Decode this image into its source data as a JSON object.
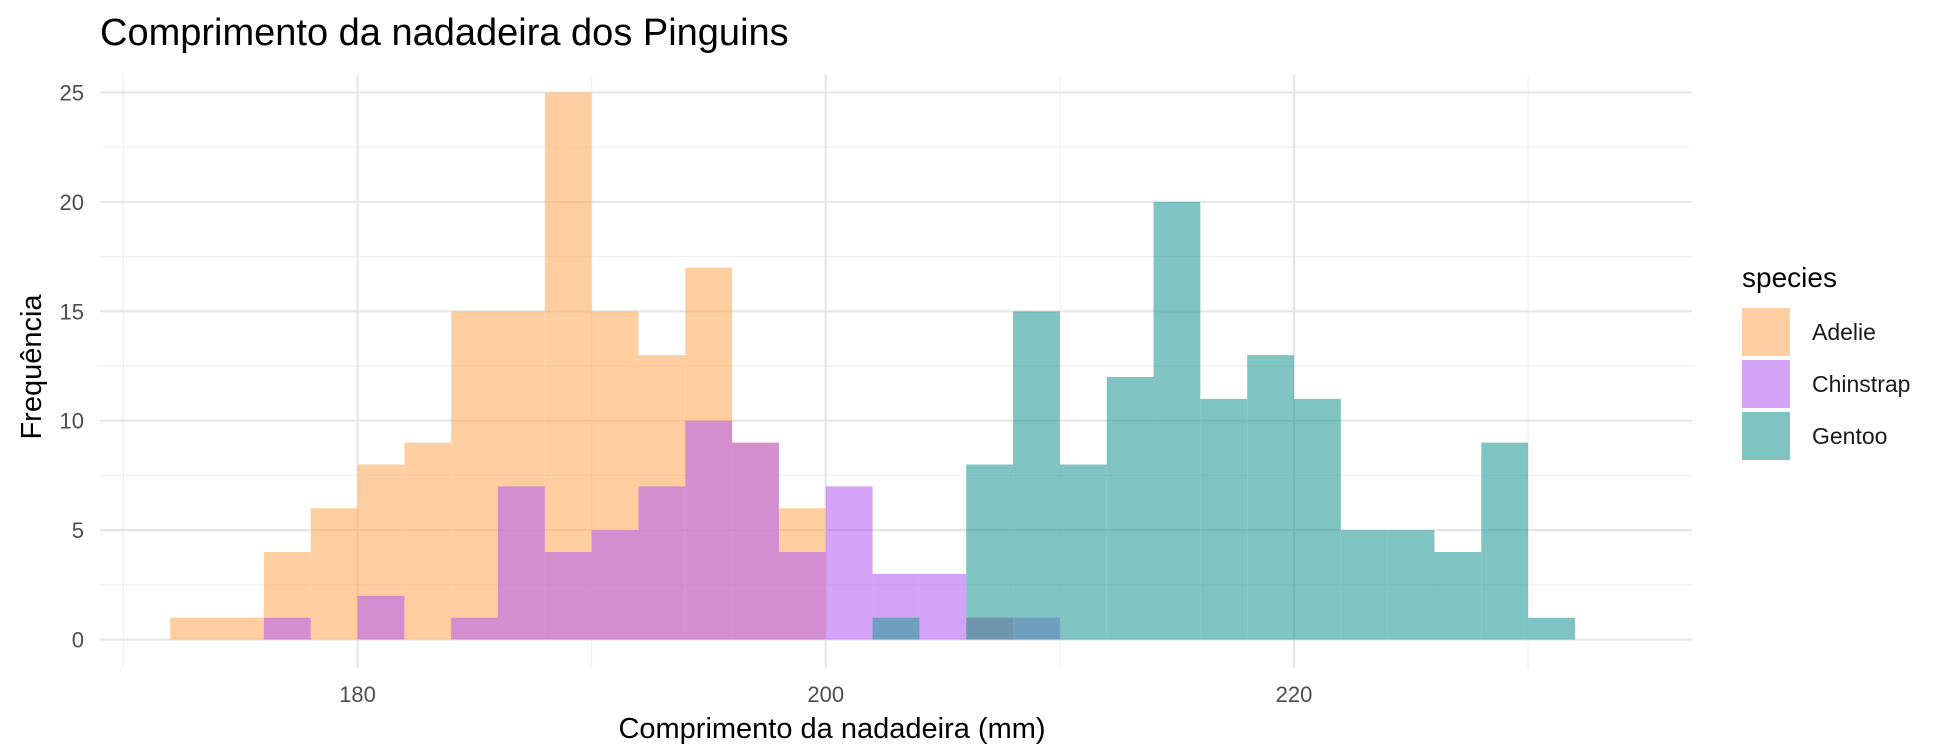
{
  "chart_data": {
    "type": "histogram",
    "title": "Comprimento da nadadeira dos Pinguins",
    "xlabel": "Comprimento da nadadeira (mm)",
    "ylabel": "Frequência",
    "xlim": [
      169,
      237
    ],
    "ylim": [
      -1.3,
      25.8
    ],
    "x_ticks": [
      180,
      200,
      220
    ],
    "y_ticks": [
      0,
      5,
      10,
      15,
      20,
      25
    ],
    "grid": true,
    "bin_width": 2,
    "bin_edges_start": 172,
    "legend": {
      "title": "species",
      "position": "right"
    },
    "series": [
      {
        "name": "Adelie",
        "color": "#fdae61",
        "values": [
          1,
          1,
          4,
          6,
          8,
          9,
          15,
          15,
          25,
          15,
          13,
          17,
          9,
          6,
          0,
          0,
          0,
          1,
          0,
          0,
          0,
          0,
          0,
          0,
          0,
          0,
          0,
          0,
          0,
          0
        ]
      },
      {
        "name": "Chinstrap",
        "color": "#b864f0",
        "values": [
          0,
          0,
          1,
          0,
          2,
          0,
          1,
          7,
          4,
          5,
          7,
          10,
          9,
          4,
          7,
          3,
          3,
          1,
          1,
          0,
          0,
          0,
          0,
          0,
          0,
          0,
          0,
          0,
          0,
          0
        ]
      },
      {
        "name": "Gentoo",
        "color": "#2a9d9a",
        "values": [
          0,
          0,
          0,
          0,
          0,
          0,
          0,
          0,
          0,
          0,
          0,
          0,
          0,
          0,
          0,
          1,
          0,
          8,
          15,
          8,
          12,
          20,
          11,
          13,
          11,
          5,
          5,
          4,
          9,
          1
        ]
      }
    ]
  }
}
